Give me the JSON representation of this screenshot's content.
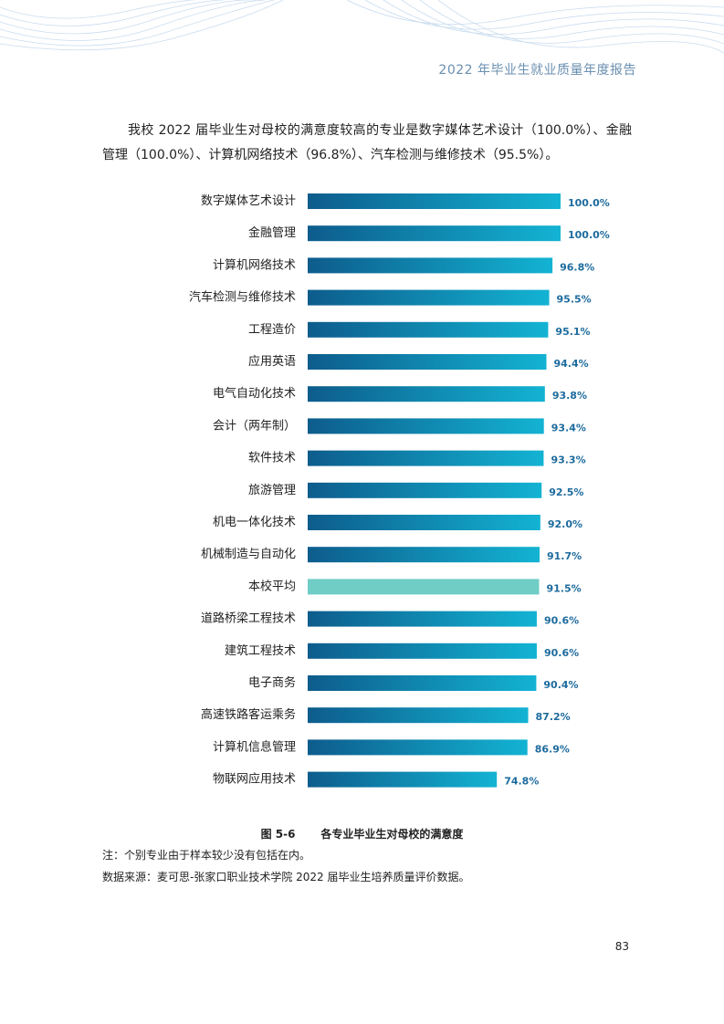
{
  "header": {
    "title": "2022 年毕业生就业质量年度报告"
  },
  "intro": {
    "text": "我校 2022 届毕业生对母校的满意度较高的专业是数字媒体艺术设计（100.0%）、金融管理（100.0%）、计算机网络技术（96.8%）、汽车检测与维修技术（95.5%）。"
  },
  "chart_data": {
    "type": "bar",
    "orientation": "horizontal",
    "categories": [
      "数字媒体艺术设计",
      "金融管理",
      "计算机网络技术",
      "汽车检测与维修技术",
      "工程造价",
      "应用英语",
      "电气自动化技术",
      "会计（两年制）",
      "软件技术",
      "旅游管理",
      "机电一体化技术",
      "机械制造与自动化",
      "本校平均",
      "道路桥梁工程技术",
      "建筑工程技术",
      "电子商务",
      "高速铁路客运乘务",
      "计算机信息管理",
      "物联网应用技术"
    ],
    "values": [
      100.0,
      100.0,
      96.8,
      95.5,
      95.1,
      94.4,
      93.8,
      93.4,
      93.3,
      92.5,
      92.0,
      91.7,
      91.5,
      90.6,
      90.6,
      90.4,
      87.2,
      86.9,
      74.8
    ],
    "value_labels": [
      "100.0%",
      "100.0%",
      "96.8%",
      "95.5%",
      "95.1%",
      "94.4%",
      "93.8%",
      "93.4%",
      "93.3%",
      "92.5%",
      "92.0%",
      "91.7%",
      "91.5%",
      "90.6%",
      "90.6%",
      "90.4%",
      "87.2%",
      "86.9%",
      "74.8%"
    ],
    "highlight_category": "本校平均",
    "xlim": [
      0,
      100
    ],
    "grid": false,
    "colors": {
      "bar_start": "#0d5c8c",
      "bar_end": "#13b3d3",
      "highlight": "#6fcdc6",
      "value_label": "#1d6b9e"
    }
  },
  "caption": {
    "figure_no": "图 5-6",
    "title": "各专业毕业生对母校的满意度"
  },
  "notes": {
    "note": "注：个别专业由于样本较少没有包括在内。",
    "source": "数据来源：麦可思-张家口职业技术学院 2022 届毕业生培养质量评价数据。"
  },
  "page_number": "83"
}
